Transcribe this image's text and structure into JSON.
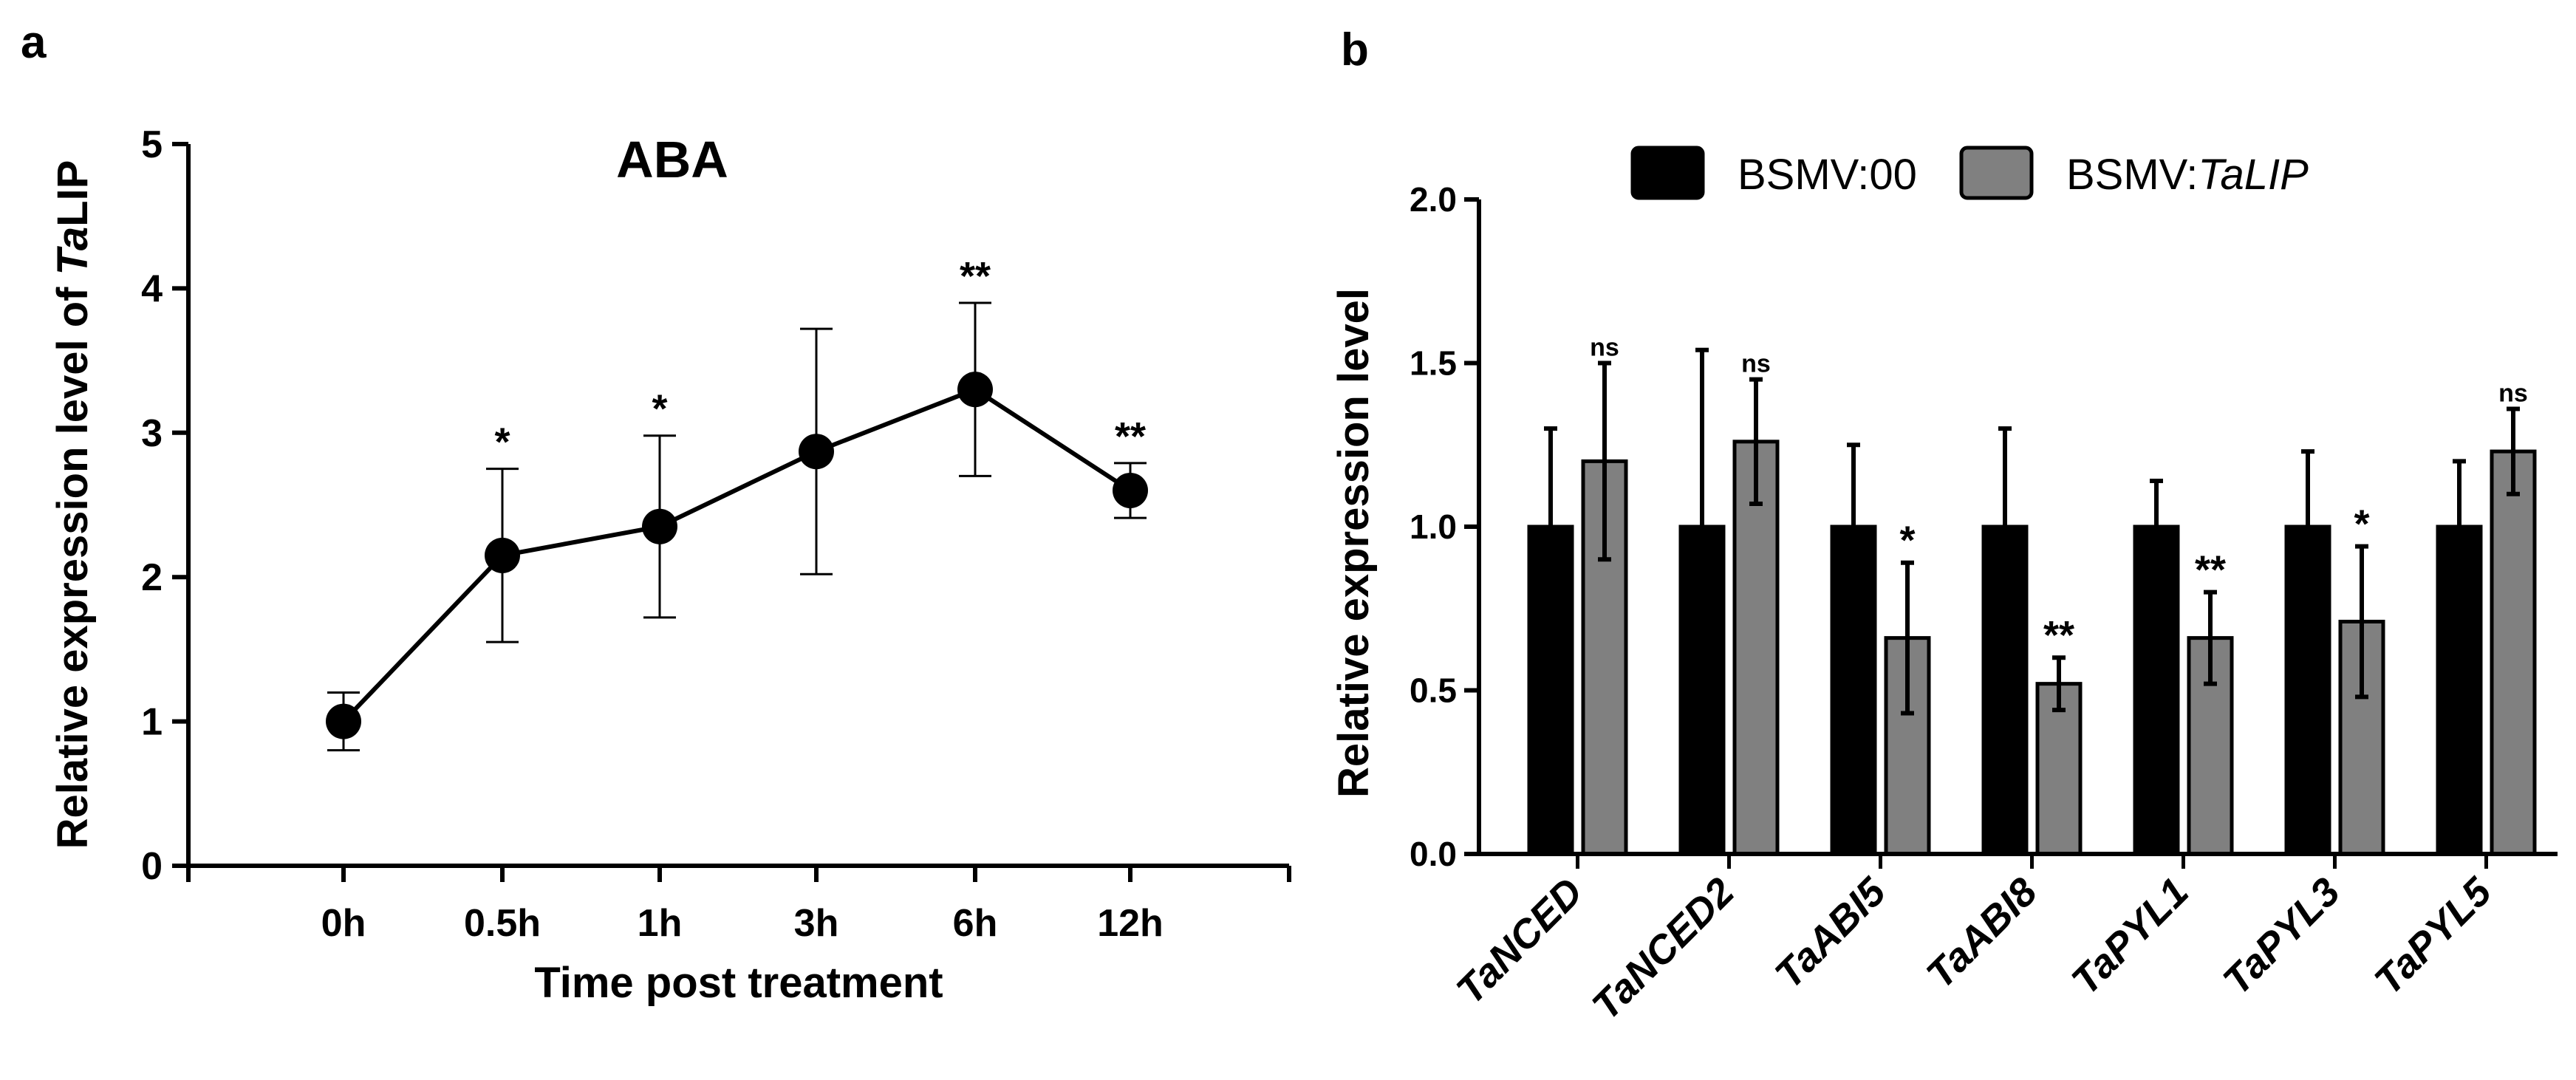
{
  "chart_data": [
    {
      "panel": "a",
      "type": "line",
      "title": "ABA",
      "xlabel": "Time post treatment",
      "ylabel_prefix": "Relative expression level of ",
      "ylabel_gene": "Ta",
      "ylabel_gene_rest": "LIP",
      "categories": [
        "0h",
        "0.5h",
        "1h",
        "3h",
        "6h",
        "12h"
      ],
      "values": [
        1.0,
        2.15,
        2.35,
        2.87,
        3.3,
        2.6
      ],
      "errors": [
        0.2,
        0.6,
        0.63,
        0.85,
        0.6,
        0.19
      ],
      "significance": [
        "",
        "*",
        "*",
        "",
        "**",
        "**"
      ],
      "ylim": [
        0,
        5
      ],
      "yticks": [
        0,
        1,
        2,
        3,
        4,
        5
      ],
      "yticklabels": [
        "0",
        "1",
        "2",
        "3",
        "4",
        "5"
      ],
      "color": "#000000"
    },
    {
      "panel": "b",
      "type": "bar",
      "ylabel": "Relative expression level",
      "categories": [
        "TaNCED",
        "TaNCED2",
        "TaABI5",
        "TaABI8",
        "TaPYL1",
        "TaPYL3",
        "TaPYL5"
      ],
      "series": [
        {
          "name_main": "BSMV:00",
          "name_italic": "",
          "color": "#000000",
          "values": [
            1.0,
            1.0,
            1.0,
            1.0,
            1.0,
            1.0,
            1.0
          ],
          "errors": [
            0.3,
            0.54,
            0.25,
            0.3,
            0.14,
            0.23,
            0.2
          ]
        },
        {
          "name_main": "BSMV:",
          "name_italic": "TaLIP",
          "color": "#808080",
          "values": [
            1.2,
            1.26,
            0.66,
            0.52,
            0.66,
            0.71,
            1.23
          ],
          "errors": [
            0.3,
            0.19,
            0.23,
            0.08,
            0.14,
            0.23,
            0.13
          ],
          "significance": [
            "ns",
            "ns",
            "*",
            "**",
            "**",
            "*",
            "ns"
          ]
        }
      ],
      "ylim": [
        0,
        2.0
      ],
      "yticks": [
        0,
        0.5,
        1.0,
        1.5,
        2.0
      ],
      "yticklabels": [
        "0.0",
        "0.5",
        "1.0",
        "1.5",
        "2.0"
      ],
      "legend_position": "top"
    }
  ],
  "panel_labels": {
    "a": "a",
    "b": "b"
  }
}
